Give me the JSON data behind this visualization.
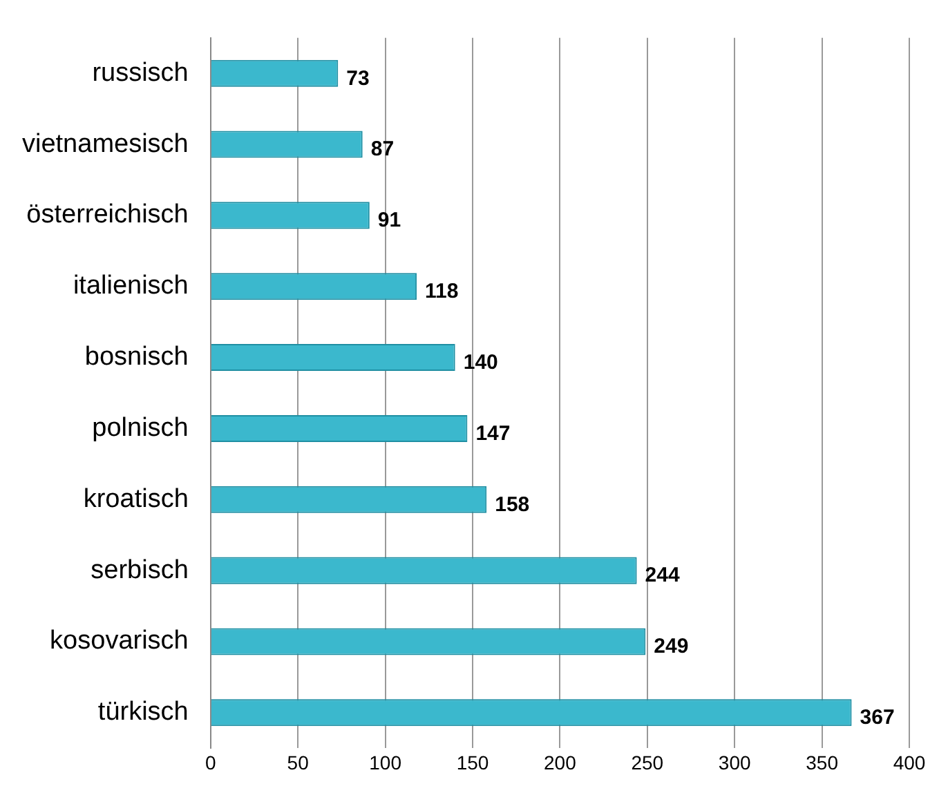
{
  "chart_data": {
    "type": "bar",
    "orientation": "horizontal",
    "categories": [
      "russisch",
      "vietnamesisch",
      "österreichisch",
      "italienisch",
      "bosnisch",
      "polnisch",
      "kroatisch",
      "serbisch",
      "kosovarisch",
      "türkisch"
    ],
    "values": [
      73,
      87,
      91,
      118,
      140,
      147,
      158,
      244,
      249,
      367
    ],
    "color": "#3bb8cd",
    "xlim": [
      0,
      400
    ],
    "xticks": [
      0,
      50,
      100,
      150,
      200,
      250,
      300,
      350,
      400
    ],
    "grid": "x",
    "data_labels": true,
    "legend": false
  }
}
